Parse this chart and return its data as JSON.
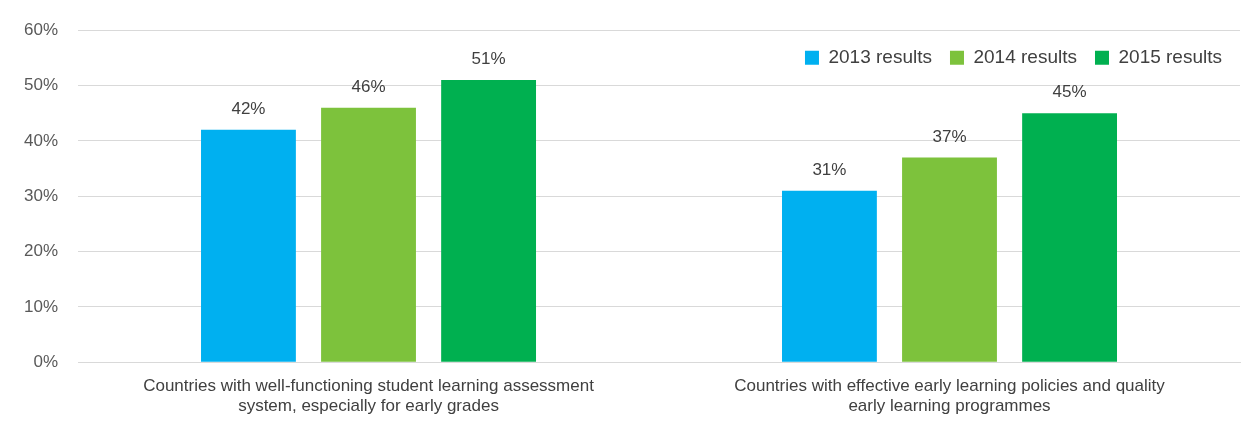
{
  "chart_data": {
    "type": "bar",
    "categories": [
      "Countries with well-functioning student learning assessment system, especially for early grades",
      "Countries with effective early learning policies and quality early learning programmes"
    ],
    "series": [
      {
        "name": "2013 results",
        "color": "#00b0f0",
        "values": [
          42,
          31
        ],
        "value_labels": [
          "42%",
          "31%"
        ]
      },
      {
        "name": "2014 results",
        "color": "#7dc23c",
        "values": [
          46,
          37
        ],
        "value_labels": [
          "46%",
          "37%"
        ]
      },
      {
        "name": "2015 results",
        "color": "#00b050",
        "values": [
          51,
          45
        ],
        "value_labels": [
          "51%",
          "45%"
        ]
      }
    ],
    "ylim": [
      0,
      60
    ],
    "yticks": [
      {
        "value": 0,
        "label": "0%"
      },
      {
        "value": 10,
        "label": "10%"
      },
      {
        "value": 20,
        "label": "20%"
      },
      {
        "value": 30,
        "label": "30%"
      },
      {
        "value": 40,
        "label": "40%"
      },
      {
        "value": 50,
        "label": "50%"
      },
      {
        "value": 60,
        "label": "60%"
      }
    ],
    "grid": "y",
    "legend": "top right"
  }
}
